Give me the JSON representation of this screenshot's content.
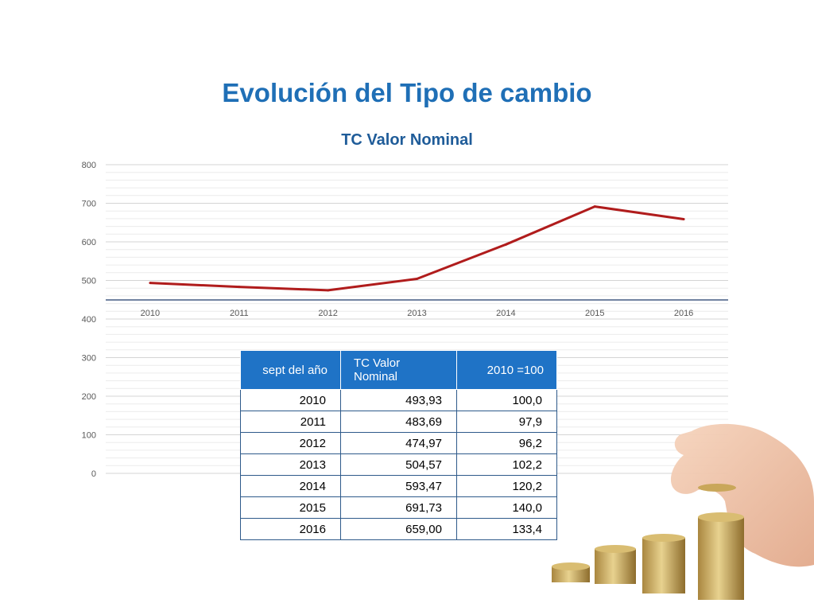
{
  "slide": {
    "title": "Evolución del Tipo de cambio"
  },
  "chart_data": {
    "type": "line",
    "title": "TC Valor Nominal",
    "categories": [
      "2010",
      "2011",
      "2012",
      "2013",
      "2014",
      "2015",
      "2016"
    ],
    "series": [
      {
        "values": [
          493.93,
          483.69,
          474.97,
          504.57,
          593.47,
          691.73,
          659.0
        ]
      }
    ],
    "yticks": [
      "0",
      "100",
      "200",
      "300",
      "400",
      "500",
      "600",
      "700",
      "800"
    ],
    "ylim": [
      0,
      800
    ],
    "grid": true,
    "line_color": "#b01c1c"
  },
  "table": {
    "headers": [
      "sept del año",
      "TC Valor Nominal",
      "2010 =100"
    ],
    "rows": [
      [
        "2010",
        "493,93",
        "100,0"
      ],
      [
        "2011",
        "483,69",
        "97,9"
      ],
      [
        "2012",
        "474,97",
        "96,2"
      ],
      [
        "2013",
        "504,57",
        "102,2"
      ],
      [
        "2014",
        "593,47",
        "120,2"
      ],
      [
        "2015",
        "691,73",
        "140,0"
      ],
      [
        "2016",
        "659,00",
        "133,4"
      ]
    ]
  },
  "image": {
    "name": "hand stacking coins"
  },
  "colors": {
    "title": "#1f6fb6",
    "table_header": "#1f73c6",
    "line": "#b01c1c"
  }
}
